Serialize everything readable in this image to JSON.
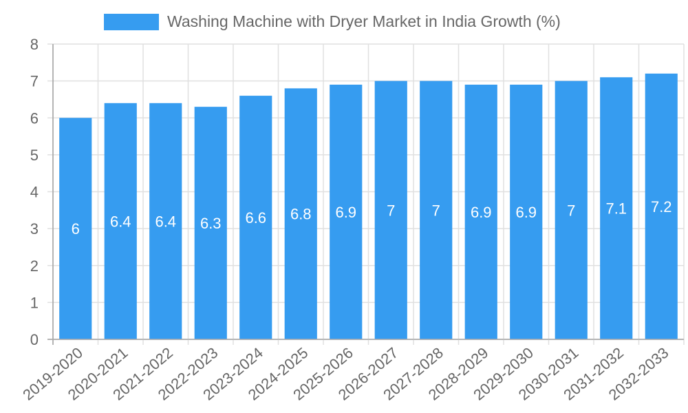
{
  "colors": {
    "bar": "#369CF0",
    "grid": "#e0e0e0",
    "axis": "#aaaaaa",
    "text": "#666666",
    "label": "#ffffff"
  },
  "legend": {
    "label": "Washing Machine with Dryer Market in India Growth (%)"
  },
  "chart_data": {
    "type": "bar",
    "title": "",
    "xlabel": "",
    "ylabel": "",
    "legend": [
      "Washing Machine with Dryer Market in India Growth (%)"
    ],
    "legend_position": "top",
    "grid": true,
    "ylim": [
      0,
      8
    ],
    "yticks": [
      0,
      1,
      2,
      3,
      4,
      5,
      6,
      7,
      8
    ],
    "categories": [
      "2019-2020",
      "2020-2021",
      "2021-2022",
      "2022-2023",
      "2023-2024",
      "2024-2025",
      "2025-2026",
      "2026-2027",
      "2027-2028",
      "2028-2029",
      "2029-2030",
      "2030-2031",
      "2031-2032",
      "2032-2033"
    ],
    "series": [
      {
        "name": "Washing Machine with Dryer Market in India Growth (%)",
        "values": [
          6,
          6.4,
          6.4,
          6.3,
          6.6,
          6.8,
          6.9,
          7,
          7,
          6.9,
          6.9,
          7,
          7.1,
          7.2
        ]
      }
    ],
    "data_labels": [
      "6",
      "6.4",
      "6.4",
      "6.3",
      "6.6",
      "6.8",
      "6.9",
      "7",
      "7",
      "6.9",
      "6.9",
      "7",
      "7.1",
      "7.2"
    ]
  }
}
